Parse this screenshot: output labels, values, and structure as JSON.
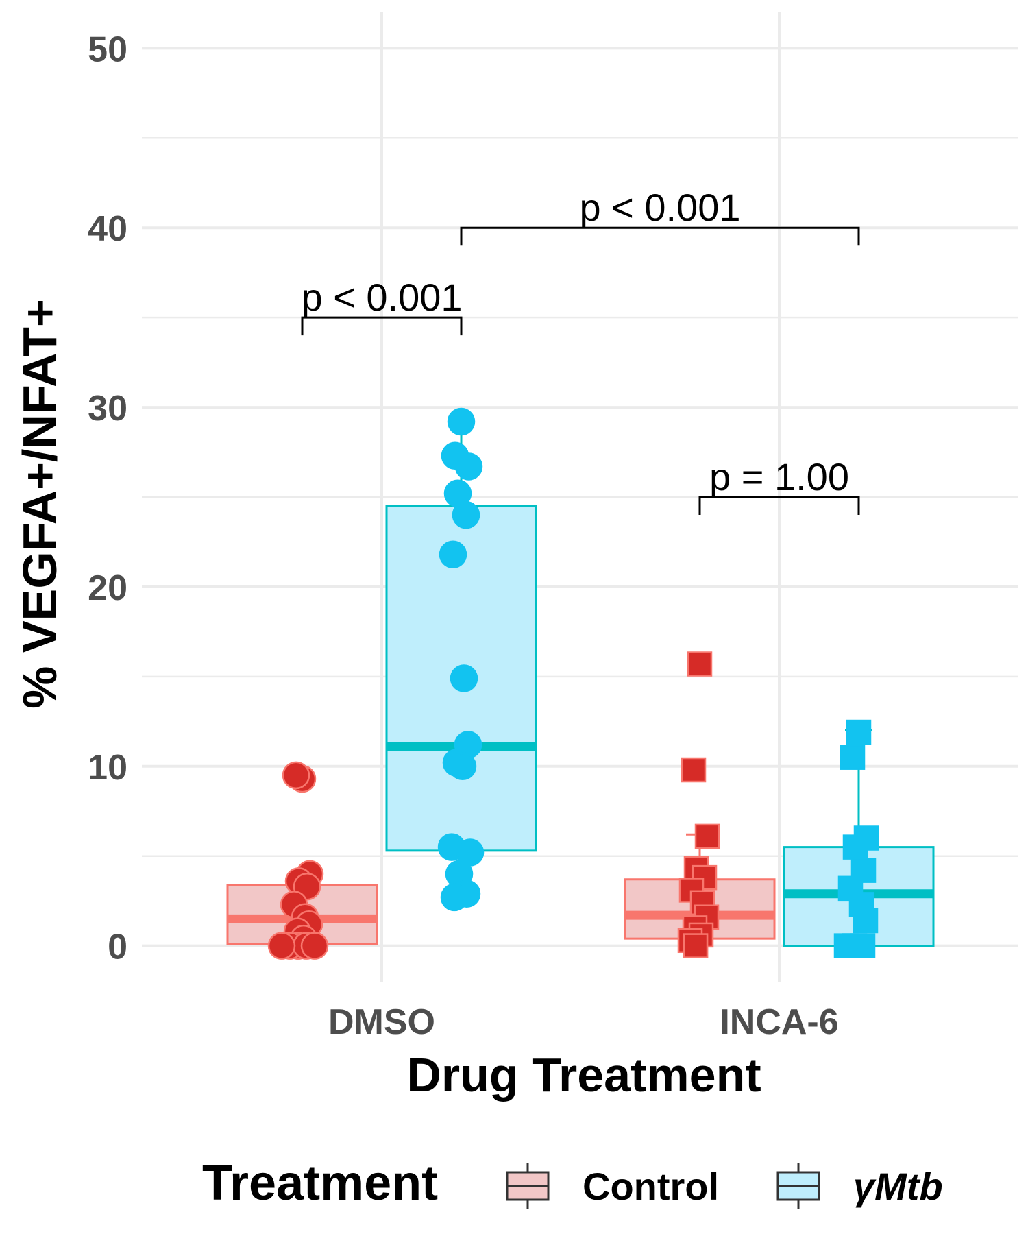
{
  "chart_data": {
    "type": "box",
    "xlabel": "Drug Treatment",
    "ylabel": "% VEGFA+/NFAT+",
    "ylim": [
      -2,
      52
    ],
    "yticks": [
      0,
      10,
      20,
      30,
      40,
      50
    ],
    "grid": true,
    "categories": [
      "DMSO",
      "INCA-6"
    ],
    "legend": {
      "title": "Treatment",
      "position": "bottom",
      "entries": [
        {
          "label": "Control",
          "italic": false
        },
        {
          "label": "γMtb",
          "italic": true
        }
      ]
    },
    "colors": {
      "control_fill": "#f2c7c7",
      "control_line": "#f8766d",
      "control_point": "#d62b27",
      "mtb_fill": "#bfeefc",
      "mtb_line": "#00bfc4",
      "mtb_point": "#12c3f0"
    },
    "series": [
      {
        "name": "Control",
        "category": "DMSO",
        "shape": "circle",
        "box": {
          "q1": 0.1,
          "median": 1.5,
          "q3": 3.4,
          "whisker_low": 0,
          "whisker_high": 4.0
        },
        "points": [
          9.3,
          9.5,
          4.0,
          3.6,
          3.3,
          2.3,
          1.6,
          1.2,
          0.8,
          0.4,
          0,
          0,
          0,
          0,
          0,
          0
        ]
      },
      {
        "name": "γMtb",
        "category": "DMSO",
        "shape": "circle",
        "box": {
          "q1": 5.3,
          "median": 11.1,
          "q3": 24.5,
          "whisker_low": 2.7,
          "whisker_high": 29.2
        },
        "points": [
          29.2,
          27.3,
          26.7,
          25.2,
          24.0,
          21.8,
          14.9,
          11.2,
          10.2,
          10.0,
          5.5,
          5.2,
          4.0,
          2.9,
          2.7
        ]
      },
      {
        "name": "Control",
        "category": "INCA-6",
        "shape": "square",
        "box": {
          "q1": 0.4,
          "median": 1.7,
          "q3": 3.7,
          "whisker_low": 0,
          "whisker_high": 6.2
        },
        "points": [
          15.7,
          9.8,
          6.1,
          4.3,
          3.8,
          3.1,
          2.4,
          1.6,
          1.0,
          0.6,
          0.3,
          0,
          0
        ]
      },
      {
        "name": "γMtb",
        "category": "INCA-6",
        "shape": "square",
        "box": {
          "q1": 0,
          "median": 2.9,
          "q3": 5.5,
          "whisker_low": 0,
          "whisker_high": 12.0
        },
        "points": [
          11.9,
          10.5,
          6.0,
          5.5,
          4.2,
          3.2,
          2.3,
          1.4,
          0,
          0,
          0,
          0
        ]
      }
    ],
    "annotations": [
      {
        "text": "p < 0.001",
        "from": "DMSO:Control",
        "to": "DMSO:γMtb",
        "y": 35
      },
      {
        "text": "p < 0.001",
        "from": "DMSO:γMtb",
        "to": "INCA-6:γMtb",
        "y": 40
      },
      {
        "text": "p = 1.00",
        "from": "INCA-6:Control",
        "to": "INCA-6:γMtb",
        "y": 25
      }
    ]
  }
}
